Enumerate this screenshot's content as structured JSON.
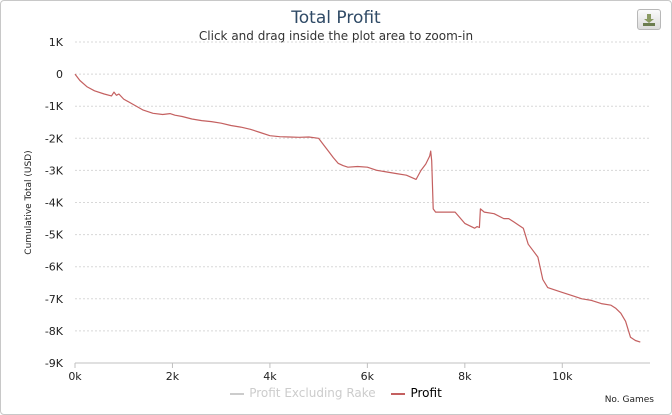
{
  "title": "Total Profit",
  "subtitle": "Click and drag inside the plot area to zoom-in",
  "export_icon": "download-icon",
  "chart_data": {
    "type": "line",
    "title": "Total Profit",
    "subtitle": "Click and drag inside the plot area to zoom-in",
    "xlabel": "No. Games",
    "ylabel": "Cumulative Total (USD)",
    "xlim": [
      0,
      11800
    ],
    "ylim": [
      -9000,
      1000
    ],
    "x_ticks": [
      "0k",
      "2k",
      "4k",
      "6k",
      "8k",
      "10k"
    ],
    "y_ticks": [
      "1K",
      "0",
      "-1K",
      "-2K",
      "-3K",
      "-4K",
      "-5K",
      "-6K",
      "-7K",
      "-8K",
      "-9K"
    ],
    "grid": true,
    "legend_position": "bottom",
    "series": [
      {
        "name": "Profit Excluding Rake",
        "color": "#cccccc",
        "visible": false,
        "x": [],
        "y": []
      },
      {
        "name": "Profit",
        "color": "#c46060",
        "visible": true,
        "x": [
          0,
          100,
          250,
          400,
          600,
          750,
          800,
          850,
          900,
          1000,
          1200,
          1400,
          1600,
          1800,
          1950,
          2050,
          2200,
          2400,
          2600,
          2800,
          3000,
          3200,
          3400,
          3600,
          3800,
          4000,
          4200,
          4400,
          4600,
          4800,
          5000,
          5100,
          5200,
          5300,
          5400,
          5500,
          5600,
          5800,
          6000,
          6200,
          6400,
          6600,
          6800,
          7000,
          7100,
          7200,
          7280,
          7300,
          7320,
          7350,
          7400,
          7600,
          7800,
          8000,
          8200,
          8250,
          8300,
          8320,
          8400,
          8600,
          8800,
          8900,
          9000,
          9100,
          9200,
          9300,
          9400,
          9500,
          9600,
          9700,
          9800,
          10000,
          10200,
          10400,
          10600,
          10800,
          11000,
          11100,
          11200,
          11300,
          11400,
          11500,
          11600
        ],
        "y": [
          0,
          -200,
          -400,
          -520,
          -620,
          -680,
          -560,
          -660,
          -620,
          -780,
          -950,
          -1120,
          -1220,
          -1260,
          -1230,
          -1280,
          -1320,
          -1400,
          -1450,
          -1480,
          -1530,
          -1600,
          -1650,
          -1720,
          -1820,
          -1920,
          -1950,
          -1960,
          -1970,
          -1960,
          -2000,
          -2200,
          -2400,
          -2600,
          -2780,
          -2850,
          -2900,
          -2880,
          -2900,
          -3000,
          -3050,
          -3100,
          -3150,
          -3280,
          -3000,
          -2800,
          -2550,
          -2400,
          -2700,
          -4200,
          -4300,
          -4300,
          -4300,
          -4650,
          -4800,
          -4750,
          -4780,
          -4200,
          -4300,
          -4350,
          -4500,
          -4500,
          -4600,
          -4700,
          -4800,
          -5300,
          -5500,
          -5700,
          -6400,
          -6650,
          -6700,
          -6800,
          -6900,
          -7000,
          -7050,
          -7150,
          -7200,
          -7300,
          -7450,
          -7700,
          -8200,
          -8300,
          -8350
        ]
      }
    ]
  },
  "legend": {
    "items": [
      "Profit Excluding Rake",
      "Profit"
    ]
  }
}
